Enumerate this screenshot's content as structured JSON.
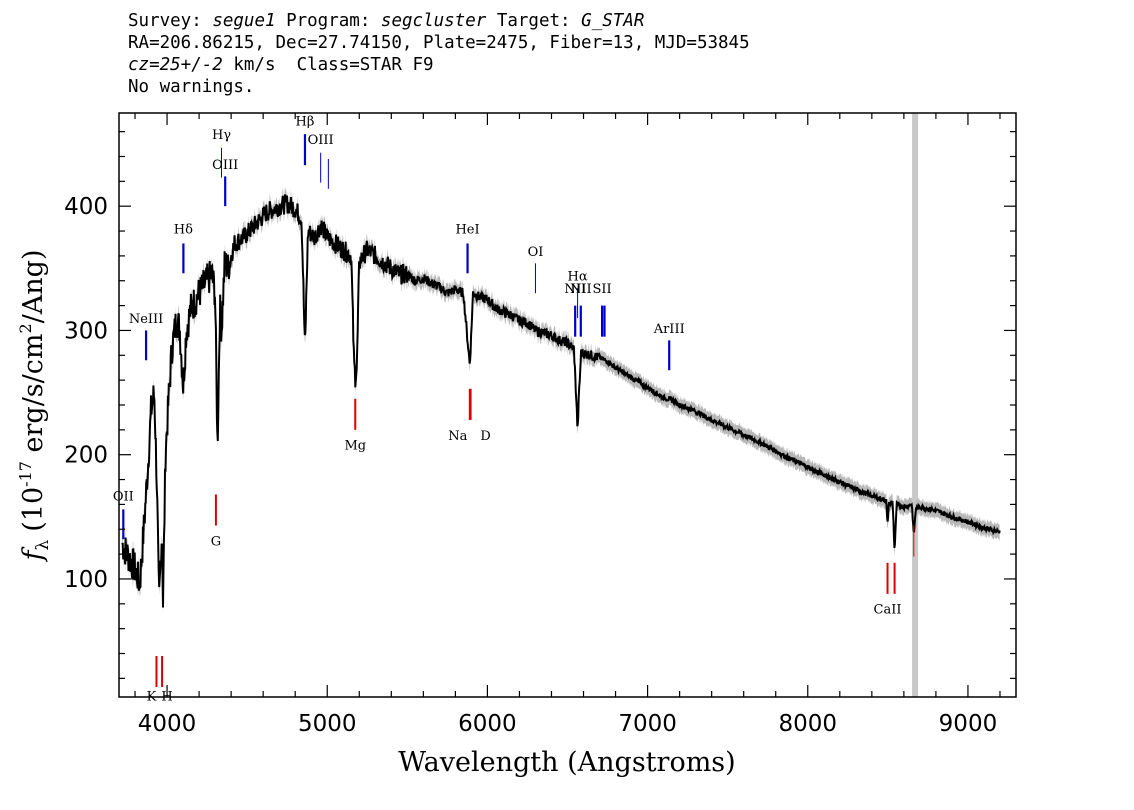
{
  "header": {
    "survey_label": "Survey:",
    "survey_value": "segue1",
    "program_label": "Program:",
    "program_value": "segcluster",
    "target_label": "Target:",
    "target_value": "G_STAR",
    "line2": "RA=206.86215, Dec=27.74150, Plate=2475, Fiber=13, MJD=53845",
    "cz_value": "cz=25+/-2",
    "cz_rest": " km/s  Class=STAR F9",
    "line4": "No warnings."
  },
  "colors": {
    "spectrum": "#000000",
    "error_band": "#b8b8b8",
    "emission_line": "#0000c8",
    "absorption_line": "#dd0000",
    "masked_band": "#c8c8c8"
  },
  "chart_data": {
    "type": "line",
    "xlabel": "Wavelength (Angstroms)",
    "ylabel_prefix": "f",
    "ylabel_sub": "λ",
    "ylabel_units": "(10",
    "ylabel_exp": "-17",
    "ylabel_units2": " erg/s/cm",
    "ylabel_exp2": "2",
    "ylabel_units3": "/Ang)",
    "xlim": [
      3700,
      9300
    ],
    "ylim": [
      5,
      475
    ],
    "xticks": [
      "4000",
      "5000",
      "6000",
      "7000",
      "8000",
      "9000"
    ],
    "yticks": [
      "100",
      "200",
      "300",
      "400"
    ],
    "masked_band_x": 8670,
    "continuum": [
      [
        3720,
        128
      ],
      [
        3760,
        118
      ],
      [
        3800,
        108
      ],
      [
        3830,
        96
      ],
      [
        3860,
        150
      ],
      [
        3880,
        190
      ],
      [
        3900,
        235
      ],
      [
        3920,
        250
      ],
      [
        3935,
        185
      ],
      [
        3950,
        80
      ],
      [
        3968,
        140
      ],
      [
        3975,
        80
      ],
      [
        3990,
        200
      ],
      [
        4010,
        245
      ],
      [
        4030,
        285
      ],
      [
        4060,
        310
      ],
      [
        4080,
        300
      ],
      [
        4101,
        255
      ],
      [
        4120,
        300
      ],
      [
        4150,
        318
      ],
      [
        4200,
        330
      ],
      [
        4250,
        340
      ],
      [
        4280,
        345
      ],
      [
        4300,
        330
      ],
      [
        4315,
        205
      ],
      [
        4330,
        320
      ],
      [
        4340,
        300
      ],
      [
        4360,
        355
      ],
      [
        4380,
        350
      ],
      [
        4420,
        370
      ],
      [
        4480,
        375
      ],
      [
        4550,
        385
      ],
      [
        4620,
        395
      ],
      [
        4700,
        400
      ],
      [
        4750,
        402
      ],
      [
        4800,
        398
      ],
      [
        4840,
        390
      ],
      [
        4861,
        285
      ],
      [
        4880,
        380
      ],
      [
        4920,
        375
      ],
      [
        4960,
        385
      ],
      [
        5000,
        375
      ],
      [
        5050,
        370
      ],
      [
        5100,
        365
      ],
      [
        5150,
        360
      ],
      [
        5167,
        275
      ],
      [
        5175,
        262
      ],
      [
        5185,
        270
      ],
      [
        5200,
        355
      ],
      [
        5250,
        365
      ],
      [
        5300,
        360
      ],
      [
        5350,
        355
      ],
      [
        5400,
        350
      ],
      [
        5450,
        345
      ],
      [
        5500,
        345
      ],
      [
        5550,
        340
      ],
      [
        5600,
        342
      ],
      [
        5650,
        338
      ],
      [
        5700,
        335
      ],
      [
        5750,
        330
      ],
      [
        5800,
        333
      ],
      [
        5850,
        330
      ],
      [
        5890,
        272
      ],
      [
        5900,
        300
      ],
      [
        5910,
        330
      ],
      [
        5950,
        327
      ],
      [
        6000,
        325
      ],
      [
        6050,
        318
      ],
      [
        6100,
        315
      ],
      [
        6150,
        312
      ],
      [
        6200,
        308
      ],
      [
        6250,
        306
      ],
      [
        6300,
        300
      ],
      [
        6350,
        298
      ],
      [
        6400,
        296
      ],
      [
        6450,
        292
      ],
      [
        6500,
        290
      ],
      [
        6540,
        285
      ],
      [
        6555,
        245
      ],
      [
        6563,
        218
      ],
      [
        6572,
        250
      ],
      [
        6585,
        282
      ],
      [
        6650,
        280
      ],
      [
        6700,
        278
      ],
      [
        6750,
        275
      ],
      [
        6800,
        270
      ],
      [
        6850,
        266
      ],
      [
        6900,
        262
      ],
      [
        6950,
        258
      ],
      [
        7000,
        254
      ],
      [
        7050,
        250
      ],
      [
        7100,
        246
      ],
      [
        7150,
        244
      ],
      [
        7200,
        240
      ],
      [
        7300,
        235
      ],
      [
        7400,
        228
      ],
      [
        7500,
        222
      ],
      [
        7600,
        216
      ],
      [
        7700,
        210
      ],
      [
        7800,
        203
      ],
      [
        7900,
        196
      ],
      [
        8000,
        190
      ],
      [
        8100,
        184
      ],
      [
        8200,
        178
      ],
      [
        8300,
        172
      ],
      [
        8400,
        167
      ],
      [
        8490,
        163
      ],
      [
        8498,
        142
      ],
      [
        8505,
        160
      ],
      [
        8530,
        162
      ],
      [
        8542,
        122
      ],
      [
        8555,
        160
      ],
      [
        8600,
        158
      ],
      [
        8650,
        160
      ],
      [
        8662,
        135
      ],
      [
        8675,
        157
      ],
      [
        8700,
        158
      ],
      [
        8800,
        155
      ],
      [
        8900,
        150
      ],
      [
        9000,
        146
      ],
      [
        9100,
        141
      ],
      [
        9200,
        138
      ]
    ],
    "emission_lines": [
      {
        "label": "OII",
        "x": 3727,
        "y_bottom": 132,
        "y_top": 156,
        "label_y": 163,
        "thin": false
      },
      {
        "label": "NeIII",
        "x": 3869,
        "y_bottom": 276,
        "y_top": 300,
        "label_y": 306,
        "thin": false
      },
      {
        "label": "Hδ",
        "x": 4102,
        "y_bottom": 346,
        "y_top": 370,
        "label_y": 378,
        "thin": false
      },
      {
        "label": "Hγ",
        "x": 4340,
        "y_bottom": 423,
        "y_top": 447,
        "label_y": 454,
        "thin": true
      },
      {
        "label": "OIII",
        "x": 4363,
        "y_bottom": 400,
        "y_top": 424,
        "label_y": 430,
        "thin": false
      },
      {
        "label": "Hβ",
        "x": 4861,
        "y_bottom": 433,
        "y_top": 458,
        "label_y": 465,
        "thin": false
      },
      {
        "label": "OIII",
        "x": 4959,
        "y_bottom": 419,
        "y_top": 443,
        "label_y": 450,
        "thin": true
      },
      {
        "label": "",
        "x": 5007,
        "y_bottom": 414,
        "y_top": 438,
        "label_y": 0,
        "thin": true
      },
      {
        "label": "HeI",
        "x": 5876,
        "y_bottom": 346,
        "y_top": 370,
        "label_y": 378,
        "thin": false
      },
      {
        "label": "OI",
        "x": 6300,
        "y_bottom": 330,
        "y_top": 354,
        "label_y": 360,
        "thin": true
      },
      {
        "label": "NII",
        "x": 6548,
        "y_bottom": 295,
        "y_top": 320,
        "label_y": 330,
        "thin": false
      },
      {
        "label": "Hα",
        "x": 6563,
        "y_bottom": 310,
        "y_top": 334,
        "label_y": 340,
        "thin": true
      },
      {
        "label": "NII",
        "x": 6583,
        "y_bottom": 295,
        "y_top": 320,
        "label_y": 330,
        "thin": false
      },
      {
        "label": "SII",
        "x": 6716,
        "y_bottom": 295,
        "y_top": 320,
        "label_y": 330,
        "thin": false
      },
      {
        "label": "",
        "x": 6731,
        "y_bottom": 295,
        "y_top": 320,
        "label_y": 0,
        "thin": false
      },
      {
        "label": "ArIII",
        "x": 7135,
        "y_bottom": 268,
        "y_top": 292,
        "label_y": 298,
        "thin": false
      }
    ],
    "absorption_lines": [
      {
        "label": "K",
        "x": 3934,
        "y_bottom": 13,
        "y_top": 38,
        "label_y": 2
      },
      {
        "label": "H",
        "x": 3969,
        "y_bottom": 13,
        "y_top": 38,
        "label_y": 2
      },
      {
        "label": "G",
        "x": 4305,
        "y_bottom": 143,
        "y_top": 168,
        "label_y": 127
      },
      {
        "label": "Mg",
        "x": 5175,
        "y_bottom": 220,
        "y_top": 245,
        "label_y": 204
      },
      {
        "label": "Na",
        "x": 5890,
        "y_bottom": 228,
        "y_top": 253,
        "label_y": 212
      },
      {
        "label": "D",
        "x": 5895,
        "y_bottom": 228,
        "y_top": 253,
        "label_y": 212
      },
      {
        "label": "CaII",
        "x": 8498,
        "y_bottom": 88,
        "y_top": 113,
        "label_y": 72
      },
      {
        "label": "",
        "x": 8542,
        "y_bottom": 88,
        "y_top": 113,
        "label_y": 0
      },
      {
        "label": "",
        "x": 8662,
        "y_bottom": 118,
        "y_top": 143,
        "label_y": 0
      }
    ]
  }
}
